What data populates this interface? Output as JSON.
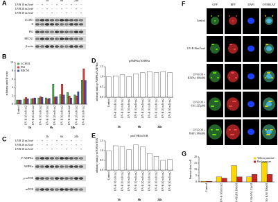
{
  "panels": {
    "A": {
      "label": "A",
      "treatments": [
        "UVB 10 mJ/cm²",
        "UVB 20 mJ/cm²",
        "UVB 30 mJ/cm²"
      ],
      "signs": [
        [
          "-",
          "+",
          "-",
          "-",
          "+",
          "-",
          "-",
          "+",
          "-",
          "-"
        ],
        [
          "-",
          "-",
          "+",
          "-",
          "-",
          "+",
          "-",
          "-",
          "+",
          "-"
        ],
        [
          "-",
          "-",
          "-",
          "+",
          "-",
          "-",
          "+",
          "-",
          "-",
          "+"
        ]
      ],
      "times": [
        "3h",
        "6h",
        "24h"
      ],
      "bands": [
        "LC3B I",
        "II",
        "P62",
        "BECN1",
        "β-actin"
      ]
    },
    "C": {
      "label": "C",
      "treatments": [
        "UVB 10 mJ/cm²",
        "UVB 20 mJ/cm²",
        "UVB 30 mJ/cm²"
      ],
      "signs": [
        [
          "-",
          "+",
          "-",
          "-",
          "+",
          "-",
          "-",
          "+",
          "-",
          "-"
        ],
        [
          "-",
          "-",
          "+",
          "-",
          "-",
          "+",
          "-",
          "-",
          "+",
          "-"
        ],
        [
          "-",
          "-",
          "-",
          "+",
          "-",
          "-",
          "+",
          "-",
          "-",
          "+"
        ]
      ],
      "times": [
        "3h",
        "6h",
        "24h"
      ],
      "bands": [
        "P-AMPKα",
        "AMPKα",
        "p-mTOR",
        "mTOR"
      ]
    },
    "F": {
      "label": "F",
      "columns": [
        "GFP",
        "RFP",
        "DAPI",
        "OVERLAY"
      ],
      "rows": [
        [
          "Control"
        ],
        [
          "UV-B 30mJ/cm²"
        ],
        [
          "UV-B 30 +",
          "RAPA (100nM)"
        ],
        [
          "UV-B 30 +",
          "SAL (25μM)"
        ],
        [
          "UV-B 30 +",
          "BAF (100nM)"
        ]
      ]
    }
  },
  "chart_data": [
    {
      "type": "bar",
      "panel_label": "B",
      "y_label": "arbitrary units/β-actin",
      "categories": [
        "Control",
        "UV-B 10 mJ/cm2",
        "UV-B 20 mJ/cm2",
        "UV-B 30 mJ/cm2",
        "UV-B 10 mJ/cm2",
        "UV-B 20 mJ/cm2",
        "UV-B 30 mJ/cm2",
        "UV-B 10 mJ/cm2",
        "UV-B 20 mJ/cm2",
        "UV-B 30 mJ/cm2"
      ],
      "groups": [
        "3h",
        "6h",
        "24h"
      ],
      "series": [
        {
          "name": "LC3B II",
          "color": "#4caf50",
          "values": [
            1,
            1.2,
            1.3,
            1.5,
            1.5,
            4.8,
            2.3,
            2.8,
            2.2,
            5.8
          ]
        },
        {
          "name": "P62",
          "color": "#e53935",
          "values": [
            1,
            1.6,
            1.4,
            1.8,
            1.3,
            1.7,
            4.8,
            2.0,
            2.0,
            8.5
          ]
        },
        {
          "name": "BECN1",
          "color": "#3f51b5",
          "values": [
            1,
            1.3,
            1.5,
            1.6,
            1.4,
            1.8,
            2.2,
            1.5,
            3.0,
            5.7
          ]
        }
      ],
      "ylim": [
        0,
        10
      ],
      "yticks": [
        0,
        2,
        4,
        6,
        8,
        10
      ],
      "legend": "upper left"
    },
    {
      "type": "bar",
      "panel_label": "D",
      "title": "pAMPKα/AMPKα",
      "y_label": "arbitrary units p-AMPKα/AMPKα",
      "categories": [
        "Control",
        "UV-B 10 mJ/cm2",
        "UV-B 20 mJ/cm2",
        "UV-B 30 mJ/cm2",
        "UV-B 10 mJ/cm2",
        "UV-B 20 mJ/cm2",
        "UV-B 30 mJ/cm2",
        "UV-B 10 mJ/cm2",
        "UV-B 20 mJ/cm2",
        "UV-B 30 mJ/cm2"
      ],
      "groups": [
        "3h",
        "6h",
        "24h"
      ],
      "color": "#ffffff",
      "values": [
        1,
        1.05,
        1.1,
        1.0,
        1.15,
        1.2,
        1.25,
        1.2,
        1.25,
        1.2
      ],
      "ylim": [
        0,
        1.5
      ],
      "yticks": [
        {
          "value": 0,
          "label": "0.0"
        },
        0.5,
        {
          "value": 1,
          "label": "1.0"
        },
        1.5
      ]
    },
    {
      "type": "bar",
      "panel_label": "E",
      "title": "pmTOR/mTOR",
      "y_label": "arbitrary units p-mTOR/mTOR",
      "categories": [
        "Control",
        "UV-B 10 mJ/cm2",
        "UV-B 20 mJ/cm2",
        "UV-B 30 mJ/cm2",
        "UV-B 10 mJ/cm2",
        "UV-B 20 mJ/cm2",
        "UV-B 30 mJ/cm2",
        "UV-B 10 mJ/cm2",
        "UV-B 20 mJ/cm2",
        "UV-B 30 mJ/cm2"
      ],
      "groups": [
        "3h",
        "6h",
        "24h"
      ],
      "color": "#ffffff",
      "values": [
        1,
        1.25,
        1.2,
        1.05,
        1.3,
        1.2,
        0.85,
        0.7,
        0.5,
        0.55
      ],
      "ylim": [
        0,
        1.5
      ],
      "yticks": [
        {
          "value": 0,
          "label": "0.0"
        },
        0.5,
        {
          "value": 1,
          "label": "1.0"
        },
        1.5
      ]
    },
    {
      "type": "bar",
      "panel_label": "G",
      "y_label": "Punctae dots/ cell",
      "categories": [
        "Control",
        "UV-B 30mJ/cm2",
        "UV-B 30+RAPA 100nM",
        "UV-B 30+SAL 25μM",
        "UV-B 30+BAF 100nM"
      ],
      "series": [
        {
          "name": "Yellow punctae",
          "color": "#ffd600",
          "values": [
            0.5,
            4,
            13,
            4,
            16
          ]
        },
        {
          "name": "Red punctae",
          "color": "#c62828",
          "values": [
            0.5,
            3,
            4,
            6,
            6
          ]
        }
      ],
      "ylim": [
        0,
        20
      ],
      "yticks": [
        0,
        5,
        10,
        15,
        20
      ],
      "legend": "upper right"
    }
  ]
}
